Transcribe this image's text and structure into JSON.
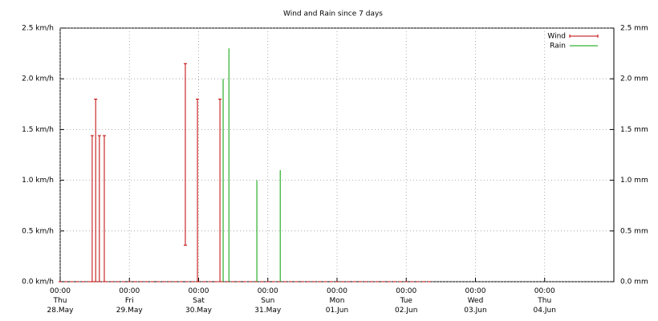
{
  "chart_data": {
    "type": "wind-rain",
    "title": "Wind and Rain since 7 days",
    "xlim": [
      0,
      192
    ],
    "xticks": [
      {
        "value": 0,
        "label": "00:00\nThu\n28.May"
      },
      {
        "value": 24,
        "label": "00:00\nFri\n29.May"
      },
      {
        "value": 48,
        "label": "00:00\nSat\n30.May"
      },
      {
        "value": 72,
        "label": "00:00\nSun\n31.May"
      },
      {
        "value": 96,
        "label": "00:00\nMon\n01.Jun"
      },
      {
        "value": 120,
        "label": "00:00\nTue\n02.Jun"
      },
      {
        "value": 144,
        "label": "00:00\nWed\n03.Jun"
      },
      {
        "value": 168,
        "label": "00:00\nThu\n04.Jun"
      }
    ],
    "ylim": [
      0,
      2.5
    ],
    "yticks": [
      {
        "value": 0,
        "label": "0.0 km/h"
      },
      {
        "value": 0.5,
        "label": "0.5 km/h"
      },
      {
        "value": 1,
        "label": "1.0 km/h"
      },
      {
        "value": 1.5,
        "label": "1.5 km/h"
      },
      {
        "value": 2,
        "label": "2.0 km/h"
      },
      {
        "value": 2.5,
        "label": "2.5 km/h"
      }
    ],
    "y2lim": [
      0,
      2.5
    ],
    "y2ticks": [
      {
        "value": 0,
        "label": "0.0 mm"
      },
      {
        "value": 0.5,
        "label": "0.5 mm"
      },
      {
        "value": 1,
        "label": "1.0 mm"
      },
      {
        "value": 1.5,
        "label": "1.5 mm"
      },
      {
        "value": 2,
        "label": "2.0 mm"
      },
      {
        "value": 2.5,
        "label": "2.5 mm"
      }
    ],
    "grid": true,
    "legend": "top-right",
    "series": [
      {
        "name": "Wind",
        "color": "#c00000",
        "style": "errorbars",
        "x": [
          0,
          2,
          4,
          6,
          8,
          10,
          11.1,
          12.3,
          13.6,
          15.3,
          16,
          18,
          20,
          22,
          24,
          26,
          28,
          30,
          32,
          34,
          36,
          38,
          40,
          42,
          43.4,
          44,
          46,
          47.6,
          48,
          50,
          52,
          54,
          55.4,
          56,
          58,
          60,
          62,
          64,
          66,
          68,
          70,
          72,
          74,
          76,
          78,
          80,
          82,
          84,
          86,
          88,
          90,
          92,
          94,
          96,
          98,
          100,
          102,
          104,
          106,
          108,
          110,
          112,
          114,
          116,
          118,
          120,
          122,
          124,
          126,
          128
        ],
        "values": [
          0,
          0,
          0,
          0,
          0,
          0,
          1.44,
          1.8,
          1.44,
          1.44,
          0,
          0,
          0,
          0,
          0,
          0,
          0,
          0,
          0,
          0,
          0,
          0,
          0,
          0,
          2.15,
          0,
          0,
          1.8,
          0,
          0,
          0,
          0,
          1.8,
          0,
          0,
          0,
          0,
          0,
          0,
          0,
          0,
          0,
          0,
          0,
          0,
          0,
          0,
          0,
          0,
          0,
          0,
          0,
          0,
          0,
          0,
          0,
          0,
          0,
          0,
          0,
          0,
          0,
          0,
          0,
          0,
          0,
          0,
          0,
          0,
          0
        ],
        "lows": [
          0,
          0,
          0,
          0,
          0,
          0,
          0,
          0,
          0,
          0,
          0,
          0,
          0,
          0,
          0,
          0,
          0,
          0,
          0,
          0,
          0,
          0,
          0,
          0,
          0.36,
          0,
          0,
          0,
          0,
          0,
          0,
          0,
          0,
          0,
          0,
          0,
          0,
          0,
          0,
          0,
          0,
          0,
          0,
          0,
          0,
          0,
          0,
          0,
          0,
          0,
          0,
          0,
          0,
          0,
          0,
          0,
          0,
          0,
          0,
          0,
          0,
          0,
          0,
          0,
          0,
          0,
          0,
          0,
          0,
          0
        ]
      },
      {
        "name": "Rain",
        "color": "#00a000",
        "style": "impulses",
        "axis": "y2",
        "x": [
          56.5,
          58.5,
          68.2,
          76.3
        ],
        "values": [
          2.0,
          2.3,
          1.0,
          1.1
        ]
      }
    ]
  }
}
